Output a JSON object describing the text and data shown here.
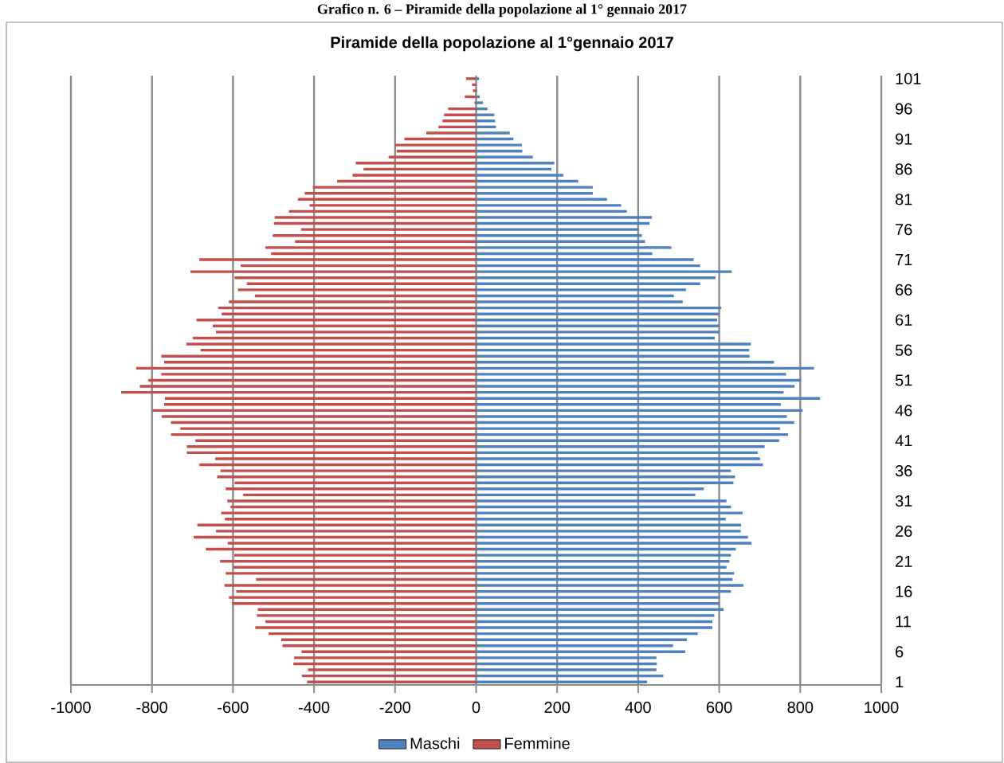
{
  "chart_data": {
    "type": "bar",
    "orientation": "horizontal",
    "title": "Piramide della popolazione al 1°gennaio 2017",
    "annotations": [
      "Grafico n. 6 – Piramide della popolazione al 1° gennaio 2017"
    ],
    "categories": [
      "101",
      null,
      null,
      null,
      null,
      "96",
      null,
      null,
      null,
      null,
      "91",
      null,
      null,
      null,
      null,
      "86",
      null,
      null,
      null,
      null,
      "81",
      null,
      null,
      null,
      null,
      "76",
      null,
      null,
      null,
      null,
      "71",
      null,
      null,
      null,
      null,
      "66",
      null,
      null,
      null,
      null,
      "61",
      null,
      null,
      null,
      null,
      "56",
      null,
      null,
      null,
      null,
      "51",
      null,
      null,
      null,
      null,
      "46",
      null,
      null,
      null,
      null,
      "41",
      null,
      null,
      null,
      null,
      "36",
      null,
      null,
      null,
      null,
      "31",
      null,
      null,
      null,
      null,
      "26",
      null,
      null,
      null,
      null,
      "21",
      null,
      null,
      null,
      null,
      "16",
      null,
      null,
      null,
      null,
      "11",
      null,
      null,
      null,
      null,
      "6",
      null,
      null,
      null,
      null,
      "1"
    ],
    "series": [
      {
        "name": "Maschi",
        "color": "#4f81bd",
        "values": [
          7,
          null,
          3,
          9,
          17,
          28,
          45,
          47,
          49,
          83,
          92,
          113,
          114,
          140,
          193,
          186,
          215,
          252,
          288,
          288,
          323,
          358,
          372,
          434,
          428,
          400,
          409,
          417,
          482,
          435,
          537,
          553,
          631,
          591,
          553,
          518,
          488,
          510,
          605,
          599,
          595,
          600,
          600,
          589,
          678,
          674,
          675,
          735,
          834,
          765,
          802,
          786,
          759,
          849,
          752,
          806,
          767,
          785,
          750,
          770,
          748,
          712,
          695,
          701,
          708,
          629,
          639,
          635,
          562,
          541,
          618,
          629,
          658,
          616,
          654,
          653,
          671,
          680,
          641,
          629,
          625,
          618,
          637,
          633,
          660,
          629,
          602,
          600,
          611,
          588,
          583,
          583,
          547,
          520,
          486,
          516,
          445,
          446,
          445,
          462,
          422
        ]
      },
      {
        "name": "Femmine",
        "color": "#c0504d",
        "values": [
          -25,
          -10,
          -8,
          -28,
          -4,
          -69,
          -79,
          -83,
          -93,
          -123,
          -177,
          -200,
          -196,
          -216,
          -297,
          -278,
          -305,
          -343,
          -403,
          -423,
          -440,
          -411,
          -462,
          -497,
          -499,
          -432,
          -502,
          -447,
          -520,
          -506,
          -683,
          -581,
          -705,
          -596,
          -566,
          -588,
          -546,
          -610,
          -636,
          -628,
          -690,
          -650,
          -642,
          -699,
          -715,
          -680,
          -777,
          -770,
          -839,
          -777,
          -809,
          -830,
          -876,
          -768,
          -770,
          -799,
          -776,
          -753,
          -730,
          -753,
          -693,
          -714,
          -714,
          -644,
          -683,
          -631,
          -639,
          -596,
          -618,
          -575,
          -614,
          -606,
          -629,
          -620,
          -688,
          -642,
          -697,
          -613,
          -667,
          -597,
          -632,
          -599,
          -618,
          -543,
          -621,
          -592,
          -610,
          -602,
          -539,
          -541,
          -520,
          -545,
          -512,
          -481,
          -478,
          -431,
          -449,
          -451,
          -415,
          -430,
          -417
        ]
      }
    ],
    "xlim": [
      -1000,
      1000
    ],
    "xticks": [
      -1000,
      -800,
      -600,
      -400,
      -200,
      0,
      200,
      400,
      600,
      800,
      1000
    ],
    "grid": "x",
    "legend": "bottom",
    "stacked": true
  }
}
